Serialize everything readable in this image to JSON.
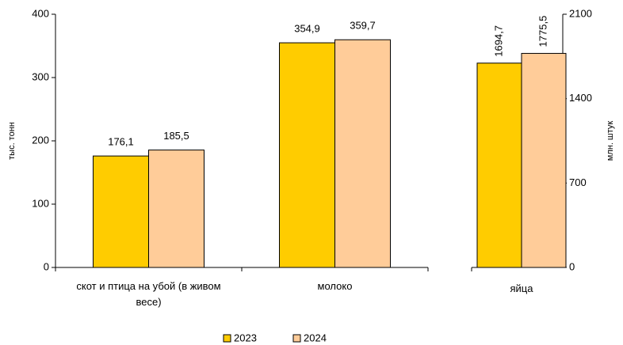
{
  "chart_data": {
    "type": "bar",
    "categories": [
      "скот и птица на убой (в живом весе)",
      "молоко",
      "яйца"
    ],
    "category_axes": [
      "y",
      "y",
      "y2"
    ],
    "series": [
      {
        "name": "2023",
        "color": "#ffcc00",
        "values": [
          176.1,
          354.9,
          1694.7
        ],
        "value_labels": [
          "176,1",
          "354,9",
          "1694,7"
        ]
      },
      {
        "name": "2024",
        "color": "#ffcc99",
        "values": [
          185.5,
          359.7,
          1775.5
        ],
        "value_labels": [
          "185,5",
          "359,7",
          "1775,5"
        ]
      }
    ],
    "ylabel": "тыс. тонн",
    "ylim": [
      0,
      400
    ],
    "yticks": [
      0,
      100,
      200,
      300,
      400
    ],
    "y2label": "млн. штук",
    "y2lim": [
      0,
      2100
    ],
    "y2ticks": [
      0,
      700,
      1400,
      2100
    ],
    "legend": "bottom"
  }
}
